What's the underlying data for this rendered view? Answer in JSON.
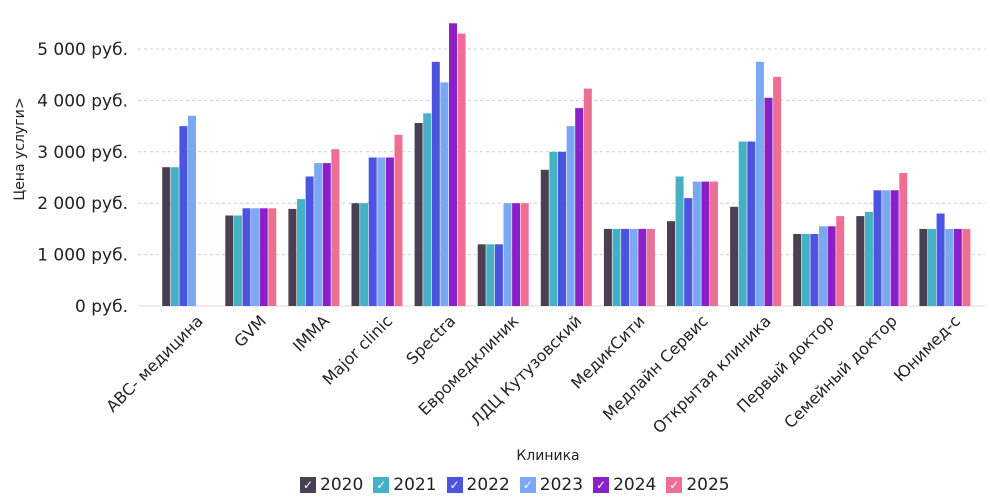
{
  "chart_data": {
    "type": "bar",
    "xlabel": "Клиника",
    "ylabel": "Цена услуги",
    "ylabel_icon": "chevron-right-icon",
    "ylim": [
      0,
      5500
    ],
    "yticks": [
      0,
      1000,
      2000,
      3000,
      4000,
      5000
    ],
    "ytick_labels": [
      "0 руб.",
      "1 000 руб.",
      "2 000 руб.",
      "3 000 руб.",
      "4 000 руб.",
      "5 000 руб."
    ],
    "grid": true,
    "legend_position": "bottom",
    "categories": [
      "ABC- медицина",
      "GVM",
      "IMMA",
      "Major clinic",
      "Spectra",
      "Евромедклиник",
      "ЛДЦ Кутузовский",
      "МедикСити",
      "Медлайн Сервис",
      "Открытая клиника",
      "Первый доктор",
      "Семейный доктор",
      "Юнимед-с"
    ],
    "series": [
      {
        "name": "2020",
        "color": "#4b3f52",
        "values": [
          2700,
          1760,
          1890,
          2000,
          3560,
          1200,
          2650,
          1500,
          1650,
          1930,
          1400,
          1750,
          1500
        ]
      },
      {
        "name": "2021",
        "color": "#45b0c6",
        "values": [
          2700,
          1760,
          2080,
          2000,
          3750,
          1200,
          3000,
          1500,
          2520,
          3200,
          1400,
          1830,
          1500
        ]
      },
      {
        "name": "2022",
        "color": "#4d55e0",
        "values": [
          3500,
          1900,
          2520,
          2890,
          4750,
          1200,
          3000,
          1500,
          2100,
          3200,
          1400,
          2250,
          1800
        ]
      },
      {
        "name": "2023",
        "color": "#7aa8f2",
        "values": [
          3700,
          1900,
          2780,
          2890,
          4350,
          2000,
          3500,
          1500,
          2420,
          4750,
          1550,
          2250,
          1500
        ]
      },
      {
        "name": "2024",
        "color": "#8b1fc9",
        "values": [
          null,
          1900,
          2780,
          2890,
          5500,
          2000,
          3850,
          1500,
          2420,
          4050,
          1550,
          2250,
          1500
        ]
      },
      {
        "name": "2025",
        "color": "#ee6f94",
        "values": [
          null,
          1900,
          3050,
          3330,
          5300,
          2000,
          4230,
          1500,
          2420,
          4460,
          1750,
          2590,
          1500
        ]
      }
    ]
  },
  "legend_check": "✓"
}
